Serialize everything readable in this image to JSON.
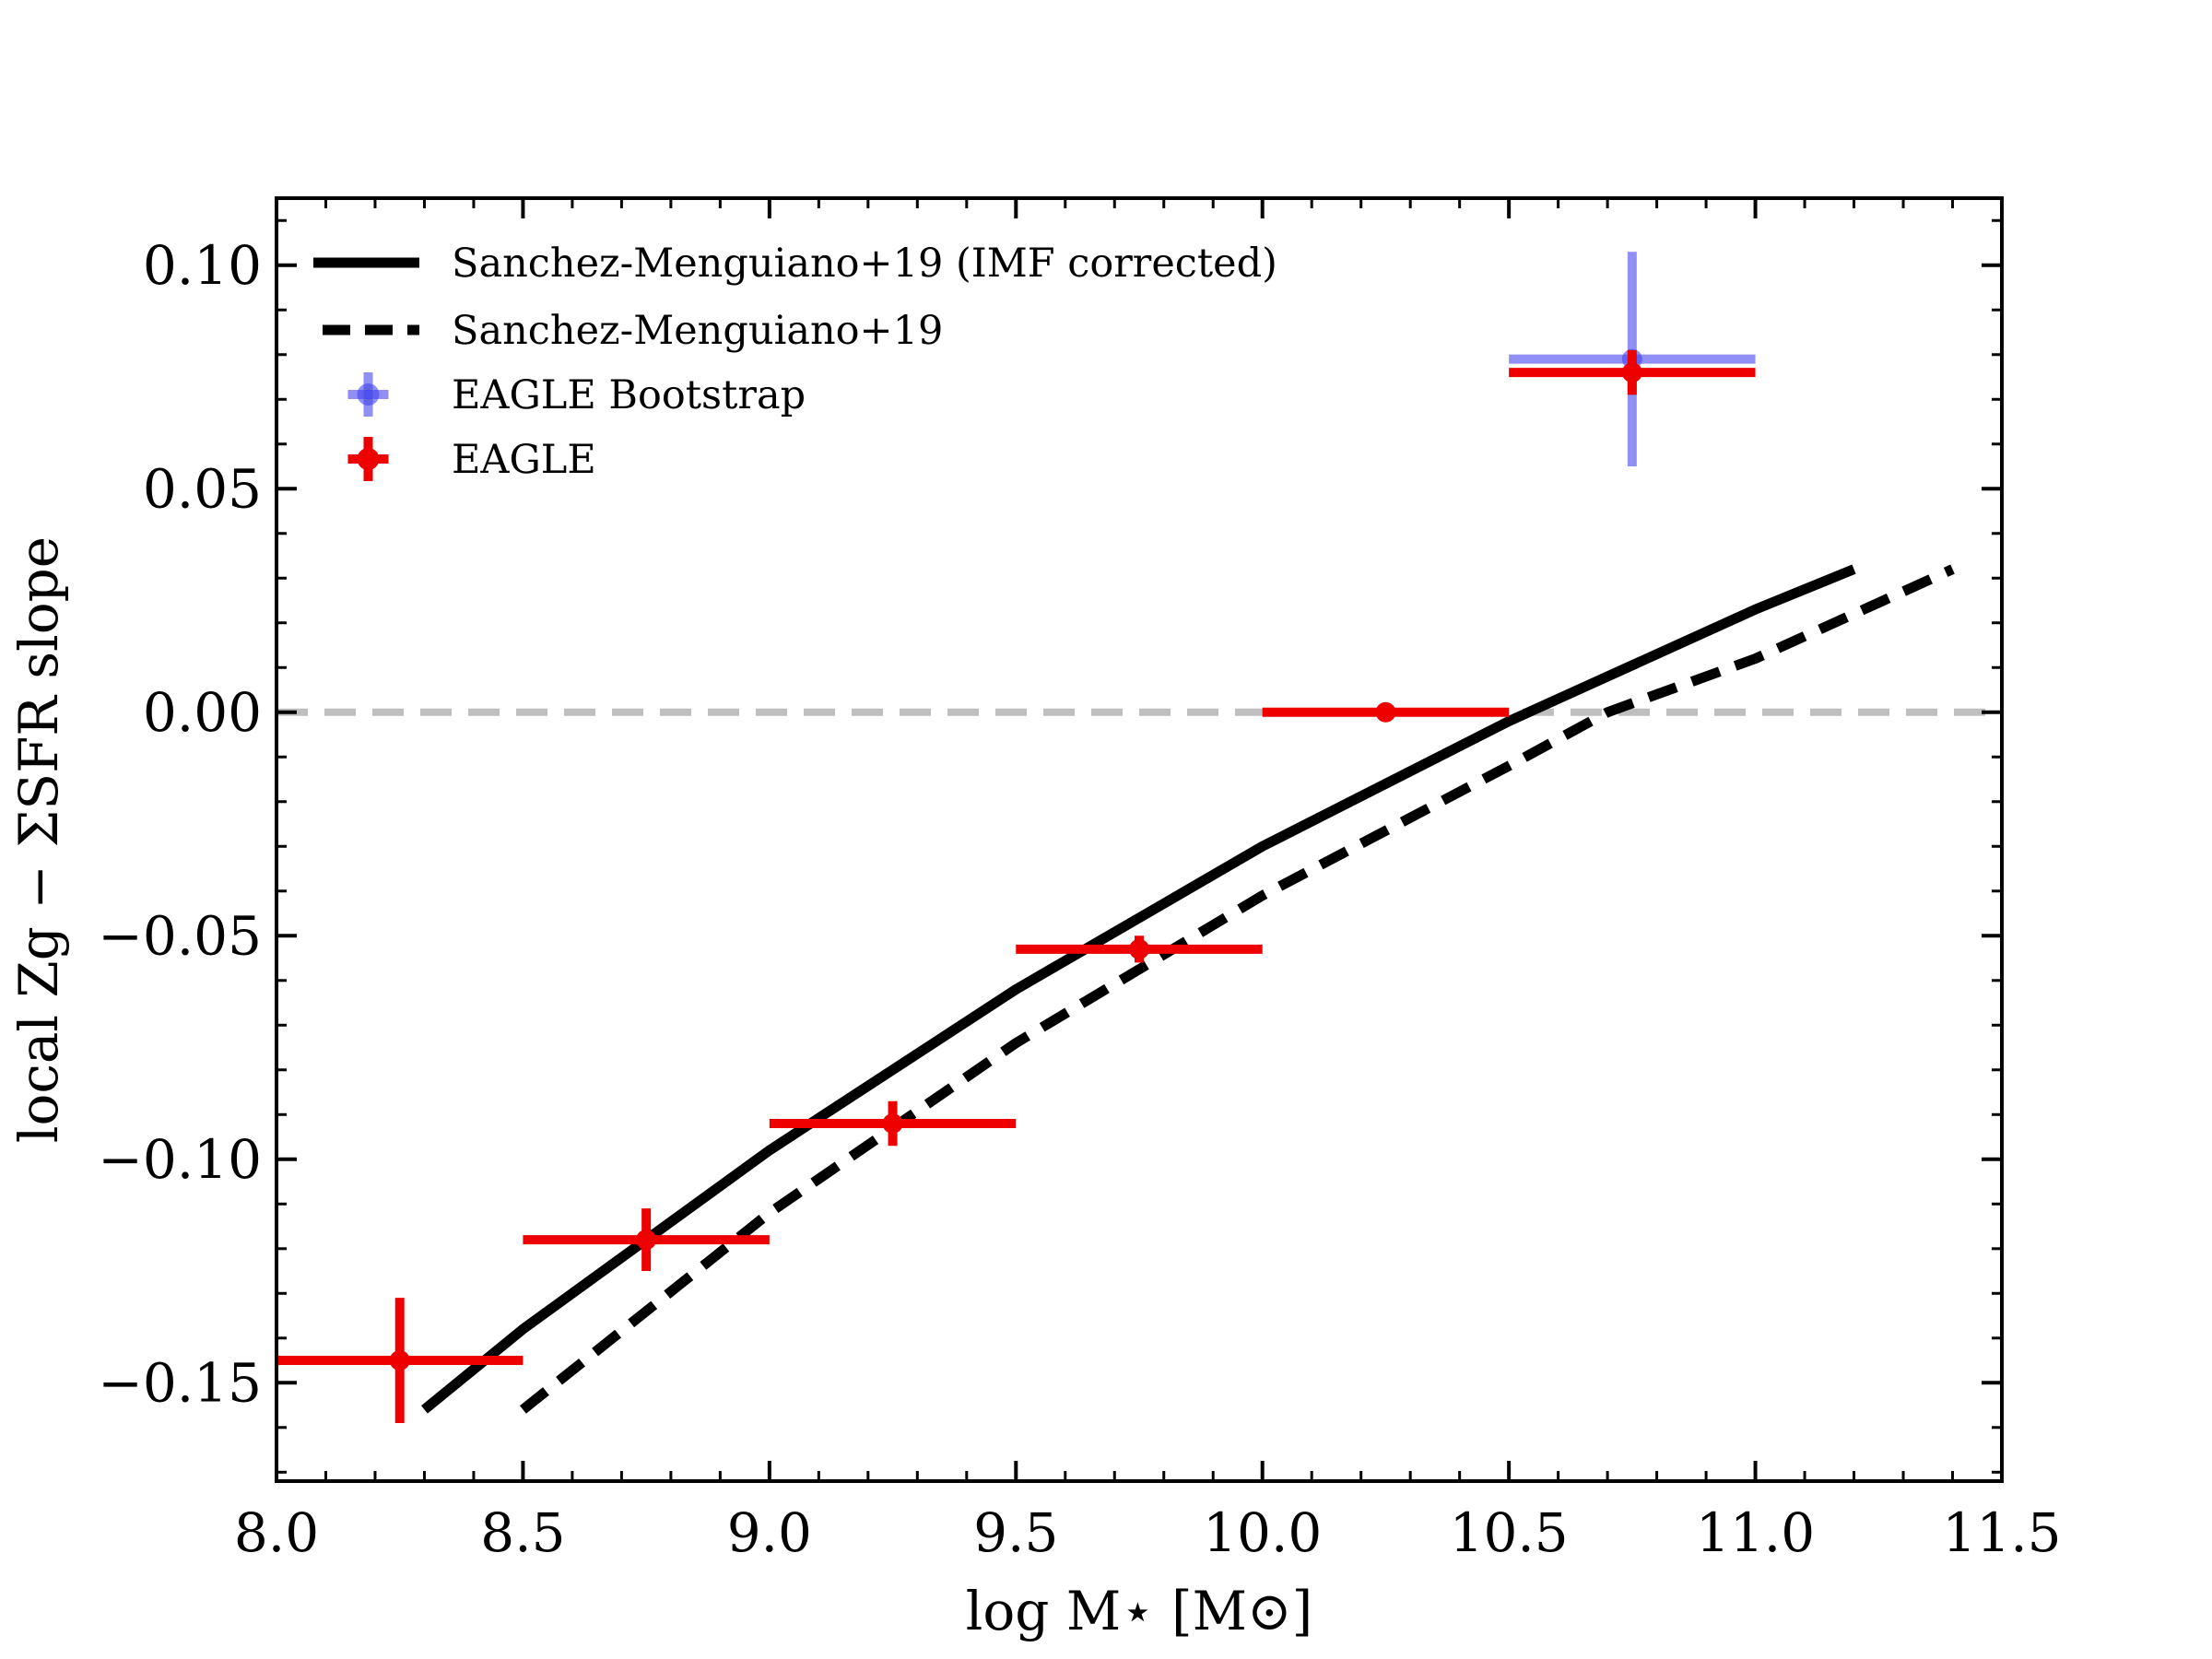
{
  "chart_data": {
    "type": "scatter",
    "xlabel": "log M⋆ [M⊙]",
    "ylabel": "local Zg − ΣSFR slope",
    "xlim": [
      8.0,
      11.5
    ],
    "ylim": [
      -0.172,
      0.115
    ],
    "x_ticks": [
      8.0,
      8.5,
      9.0,
      9.5,
      10.0,
      10.5,
      11.0,
      11.5
    ],
    "x_tick_labels": [
      "8.0",
      "8.5",
      "9.0",
      "9.5",
      "10.0",
      "10.5",
      "11.0",
      "11.5"
    ],
    "y_ticks": [
      0.1,
      0.05,
      0.0,
      -0.05,
      -0.1,
      -0.15
    ],
    "y_tick_labels": [
      "0.10",
      "0.05",
      "0.00",
      "−0.05",
      "−0.10",
      "−0.15"
    ],
    "grid": false,
    "legend_position": "top-left",
    "reference_line": {
      "y": 0.0,
      "style": "dashed",
      "color": "#bfbfbf"
    },
    "series": [
      {
        "name": "Sanchez-Menguiano+19 (IMF corrected)",
        "kind": "line",
        "style": "solid",
        "color": "#000000",
        "x": [
          8.3,
          8.5,
          9.0,
          9.5,
          10.0,
          10.5,
          11.0,
          11.2
        ],
        "y": [
          -0.156,
          -0.138,
          -0.098,
          -0.062,
          -0.03,
          -0.002,
          0.023,
          0.032
        ]
      },
      {
        "name": "Sanchez-Menguiano+19",
        "kind": "line",
        "style": "dashed",
        "color": "#000000",
        "x": [
          8.5,
          9.0,
          9.5,
          10.0,
          10.5,
          10.7,
          11.0,
          11.4
        ],
        "y": [
          -0.156,
          -0.112,
          -0.074,
          -0.041,
          -0.012,
          0.0,
          0.012,
          0.032
        ]
      },
      {
        "name": "EAGLE Bootstrap",
        "kind": "errorbar",
        "color": "#4444ee",
        "points": [
          {
            "x": 10.75,
            "y": 0.079,
            "xerr": 0.25,
            "yerr_lo": 0.024,
            "yerr_hi": 0.024
          }
        ]
      },
      {
        "name": "EAGLE",
        "kind": "errorbar",
        "color": "#ee0000",
        "points": [
          {
            "x": 8.25,
            "y": -0.145,
            "xerr": 0.25,
            "yerr_lo": 0.014,
            "yerr_hi": 0.014
          },
          {
            "x": 8.75,
            "y": -0.118,
            "xerr": 0.25,
            "yerr_lo": 0.007,
            "yerr_hi": 0.007
          },
          {
            "x": 9.25,
            "y": -0.092,
            "xerr": 0.25,
            "yerr_lo": 0.005,
            "yerr_hi": 0.005
          },
          {
            "x": 9.75,
            "y": -0.053,
            "xerr": 0.25,
            "yerr_lo": 0.003,
            "yerr_hi": 0.003
          },
          {
            "x": 10.25,
            "y": 0.0,
            "xerr": 0.25,
            "yerr_lo": 0.001,
            "yerr_hi": 0.001
          },
          {
            "x": 10.75,
            "y": 0.076,
            "xerr": 0.25,
            "yerr_lo": 0.005,
            "yerr_hi": 0.005
          }
        ]
      }
    ]
  }
}
